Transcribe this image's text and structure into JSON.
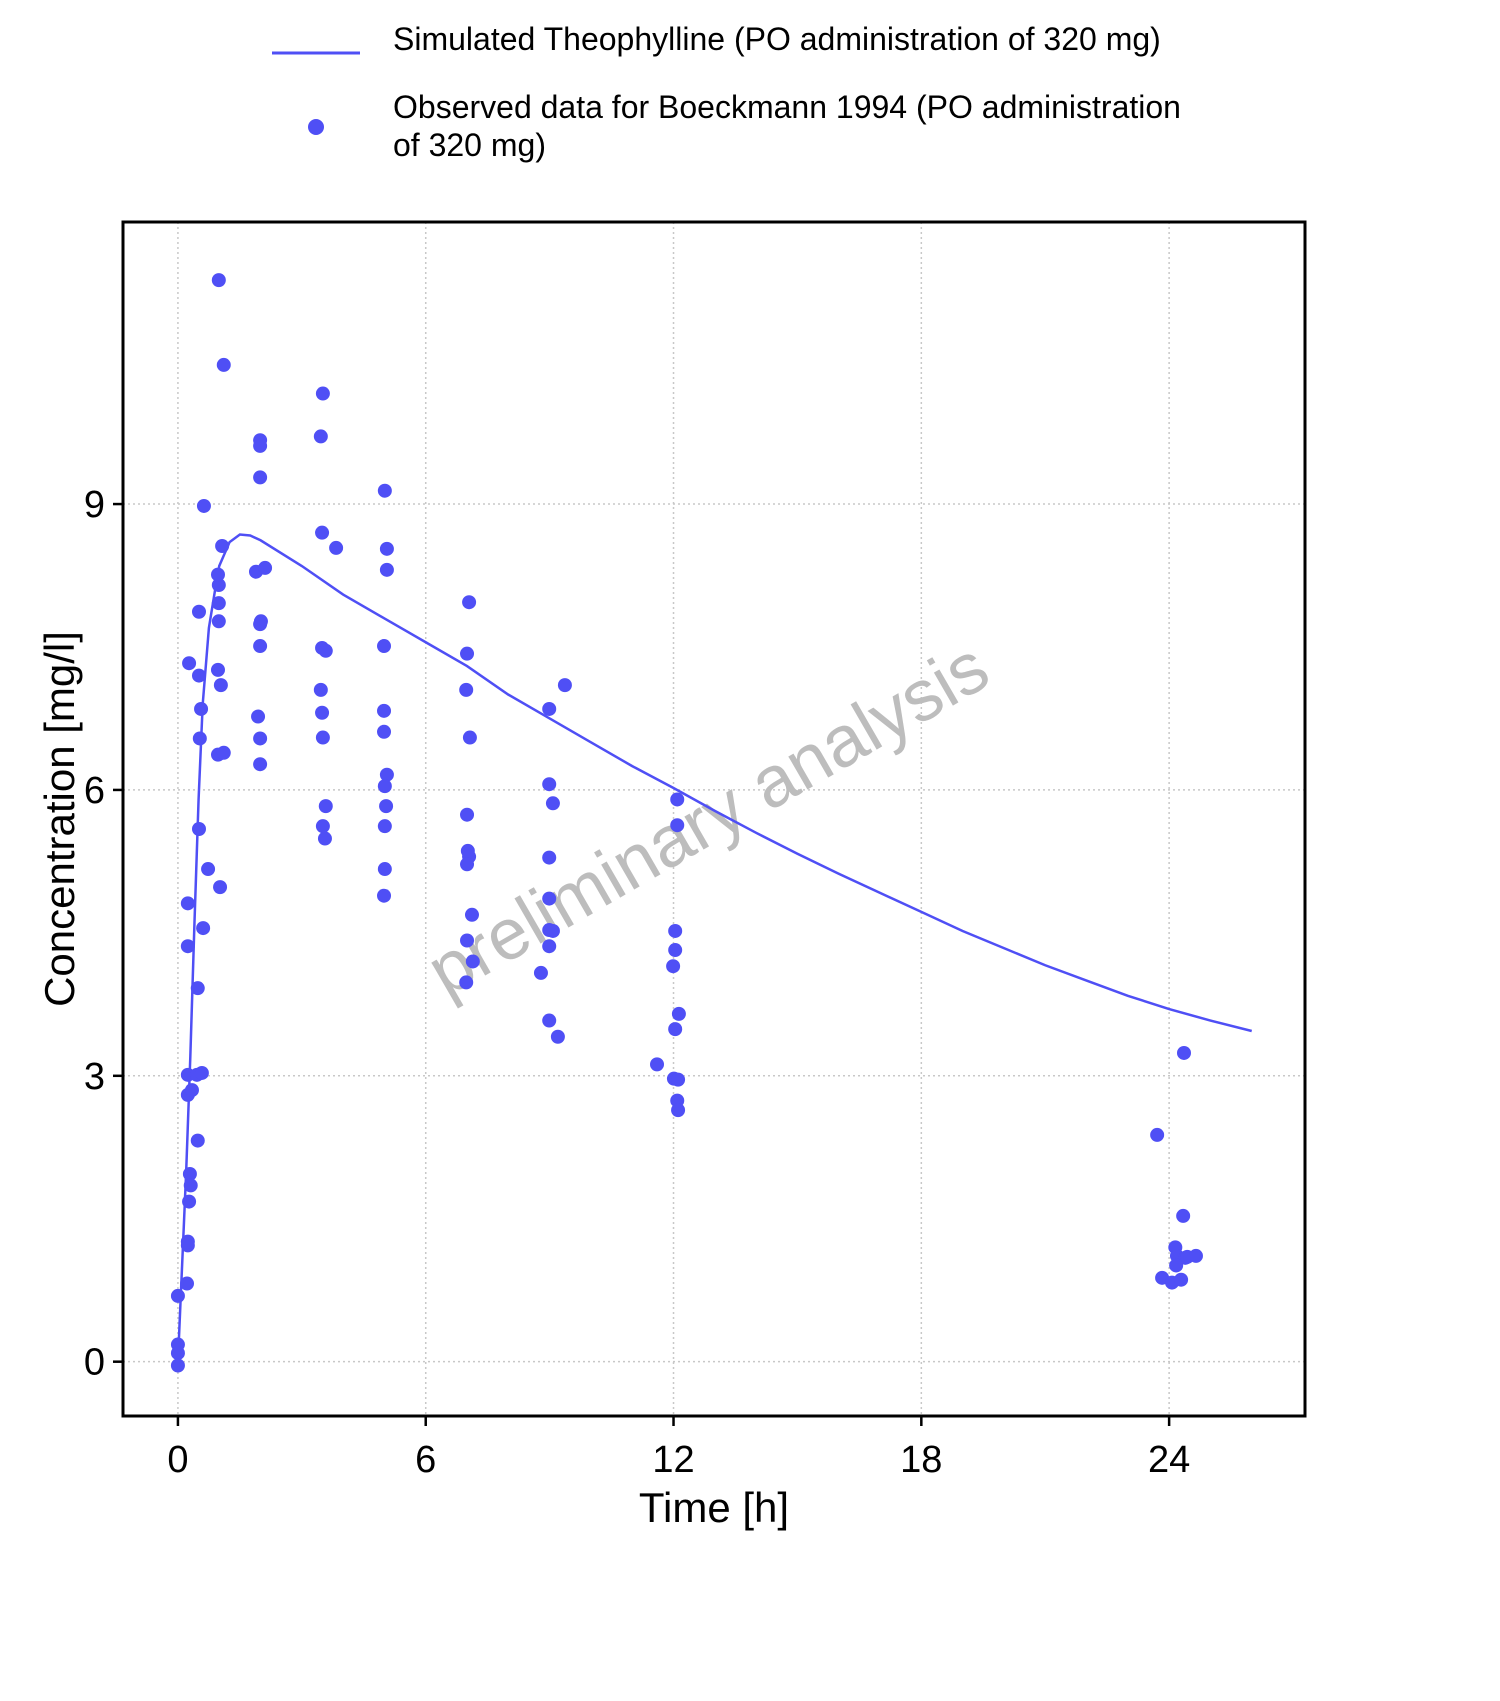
{
  "chart_data": {
    "type": "line",
    "xlabel": "Time [h]",
    "ylabel": "Concentration [mg/l]",
    "watermark": "preliminary analysis",
    "xlim": [
      -1.33,
      27.29
    ],
    "ylim": [
      -0.57,
      11.96
    ],
    "xticks": [
      0,
      6,
      12,
      18,
      24
    ],
    "yticks": [
      0,
      3,
      6,
      9
    ],
    "grid": true,
    "series": [
      {
        "name": "Simulated Theophylline (PO administration of 320 mg)",
        "type": "line",
        "color": "#4f4ff5",
        "x": [
          0,
          0.1,
          0.2,
          0.3,
          0.4,
          0.5,
          0.6,
          0.75,
          0.9,
          1.0,
          1.25,
          1.5,
          1.75,
          2,
          3,
          4,
          5,
          6,
          7,
          8,
          9,
          10,
          11,
          12,
          13,
          14,
          15,
          16,
          17,
          18,
          19,
          20,
          21,
          22,
          23,
          24,
          25,
          26
        ],
        "values": [
          0,
          1.0,
          2.0,
          3.2,
          4.6,
          5.9,
          6.9,
          7.7,
          8.1,
          8.35,
          8.6,
          8.68,
          8.67,
          8.62,
          8.35,
          8.05,
          7.8,
          7.55,
          7.3,
          7.0,
          6.75,
          6.5,
          6.25,
          6.02,
          5.78,
          5.55,
          5.33,
          5.12,
          4.92,
          4.72,
          4.52,
          4.34,
          4.16,
          4.0,
          3.84,
          3.7,
          3.58,
          3.47
        ]
      },
      {
        "name": "Observed data for Boeckmann 1994 (PO administration of 320 mg)",
        "type": "scatter",
        "color": "#4f4ff5",
        "x": [
          0,
          0,
          0,
          0,
          0.22,
          0.24,
          0.24,
          0.27,
          0.29,
          0.31,
          0.24,
          0.24,
          0.34,
          0.24,
          0.24,
          0.27,
          0.48,
          0.48,
          0.46,
          0.58,
          0.51,
          0.53,
          0.56,
          0.51,
          0.51,
          0.61,
          0.63,
          0.73,
          0.99,
          1.02,
          0.97,
          1.04,
          0.97,
          0.99,
          0.99,
          0.99,
          0.97,
          1.07,
          1.11,
          1.11,
          1.99,
          1.99,
          1.99,
          1.89,
          2.11,
          2.01,
          1.99,
          1.99,
          1.94,
          1.99,
          1.99,
          3.51,
          3.46,
          3.49,
          3.83,
          3.49,
          3.58,
          3.46,
          3.49,
          3.51,
          3.58,
          3.51,
          3.56,
          5.01,
          5.06,
          5.06,
          4.99,
          4.99,
          4.99,
          5.06,
          5.01,
          5.04,
          5.01,
          5.01,
          4.99,
          7.05,
          7.0,
          6.98,
          7.07,
          7.0,
          7.02,
          7.05,
          7.0,
          7.12,
          7.0,
          7.14,
          6.98,
          8.99,
          9.37,
          8.99,
          9.08,
          8.99,
          8.99,
          8.99,
          9.08,
          8.99,
          8.79,
          8.99,
          9.2,
          12.09,
          12.09,
          12.04,
          12.04,
          11.99,
          12.13,
          12.04,
          11.6,
          12.01,
          12.11,
          12.09,
          12.11,
          23.71,
          24.36,
          24.34,
          24.15,
          24.19,
          24.39,
          24.17,
          24.44,
          24.65,
          23.83,
          24.07,
          24.29
        ],
        "values": [
          0.69,
          0.18,
          0.09,
          -0.04,
          0.82,
          1.22,
          1.26,
          1.68,
          1.97,
          1.85,
          2.8,
          3.01,
          2.85,
          4.36,
          4.81,
          7.33,
          2.32,
          3.92,
          3.01,
          3.03,
          5.59,
          6.54,
          6.85,
          7.2,
          7.87,
          4.55,
          8.98,
          5.17,
          11.35,
          4.98,
          6.37,
          7.1,
          7.26,
          7.77,
          7.96,
          8.15,
          8.26,
          8.56,
          10.46,
          6.39,
          9.67,
          9.61,
          9.28,
          8.29,
          8.33,
          7.77,
          7.74,
          7.51,
          6.77,
          6.54,
          6.27,
          10.16,
          9.71,
          8.7,
          8.54,
          7.49,
          7.46,
          7.05,
          6.81,
          6.55,
          5.83,
          5.62,
          5.49,
          9.14,
          8.53,
          8.31,
          7.51,
          6.83,
          6.61,
          6.16,
          6.04,
          5.83,
          5.62,
          5.17,
          4.89,
          7.97,
          7.43,
          7.05,
          6.55,
          5.74,
          5.36,
          5.3,
          5.22,
          4.69,
          4.42,
          4.2,
          3.98,
          6.85,
          7.1,
          6.06,
          5.86,
          5.29,
          4.86,
          4.53,
          4.52,
          4.36,
          4.08,
          3.58,
          3.41,
          5.9,
          5.63,
          4.52,
          4.32,
          4.15,
          3.65,
          3.49,
          3.12,
          2.97,
          2.96,
          2.74,
          2.64,
          2.38,
          3.24,
          1.53,
          1.2,
          1.11,
          1.09,
          1.01,
          1.1,
          1.11,
          0.88,
          0.83,
          0.86
        ]
      }
    ]
  }
}
